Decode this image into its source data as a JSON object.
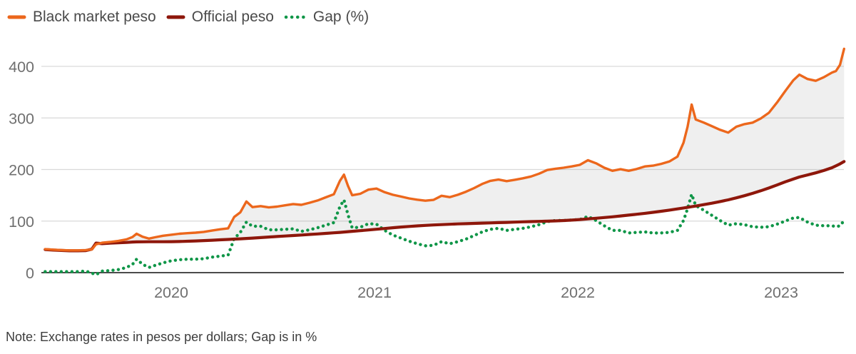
{
  "legend": {
    "items": [
      {
        "label": "Black market peso",
        "series": "black_market",
        "style": "solid"
      },
      {
        "label": "Official peso",
        "series": "official",
        "style": "solid"
      },
      {
        "label": "Gap (%)",
        "series": "gap",
        "style": "dotted"
      }
    ]
  },
  "note": "Note: Exchange rates in pesos per dollars; Gap is in %",
  "colors": {
    "black_market": "#ec671c",
    "official": "#8e170b",
    "gap": "#109648",
    "grid": "#d9d9d9",
    "axis": "#333333",
    "tick_label": "#6f6f6f",
    "legend_text": "#4a4a4a",
    "note_text": "#3d3d3d",
    "area_fill": "rgba(130,130,130,0.13)"
  },
  "chart_data": {
    "type": "line",
    "title": "",
    "xlabel": "",
    "ylabel": "",
    "x_unit": "year (decimal)",
    "x_ticks": [
      2020,
      2021,
      2022,
      2023
    ],
    "y_ticks": [
      0,
      100,
      200,
      300,
      400
    ],
    "x_range": [
      2019.35,
      2023.38
    ],
    "y_range": [
      0,
      445
    ],
    "grid": "horizontal",
    "legend_position": "top-left",
    "area_fill_between": [
      "Black market peso",
      "Official peso"
    ],
    "x": [
      2019.38,
      2019.42,
      2019.46,
      2019.5,
      2019.54,
      2019.58,
      2019.61,
      2019.63,
      2019.66,
      2019.7,
      2019.74,
      2019.78,
      2019.81,
      2019.83,
      2019.86,
      2019.89,
      2019.92,
      2019.96,
      2020.0,
      2020.04,
      2020.08,
      2020.12,
      2020.16,
      2020.2,
      2020.24,
      2020.28,
      2020.31,
      2020.34,
      2020.37,
      2020.4,
      2020.44,
      2020.48,
      2020.52,
      2020.56,
      2020.6,
      2020.64,
      2020.68,
      2020.72,
      2020.76,
      2020.8,
      2020.83,
      2020.85,
      2020.87,
      2020.89,
      2020.93,
      2020.97,
      2021.01,
      2021.05,
      2021.09,
      2021.13,
      2021.17,
      2021.21,
      2021.25,
      2021.29,
      2021.33,
      2021.37,
      2021.41,
      2021.45,
      2021.49,
      2021.53,
      2021.57,
      2021.61,
      2021.65,
      2021.69,
      2021.73,
      2021.77,
      2021.81,
      2021.85,
      2021.89,
      2021.93,
      2021.97,
      2022.01,
      2022.05,
      2022.09,
      2022.13,
      2022.17,
      2022.21,
      2022.25,
      2022.29,
      2022.33,
      2022.37,
      2022.41,
      2022.45,
      2022.49,
      2022.52,
      2022.54,
      2022.56,
      2022.58,
      2022.62,
      2022.66,
      2022.7,
      2022.74,
      2022.78,
      2022.82,
      2022.86,
      2022.9,
      2022.94,
      2022.98,
      2023.02,
      2023.06,
      2023.09,
      2023.13,
      2023.17,
      2023.21,
      2023.25,
      2023.27,
      2023.29,
      2023.31
    ],
    "series": [
      {
        "name": "Black market peso",
        "color_key": "black_market",
        "style": "solid",
        "values": [
          45.6,
          44.6,
          43.8,
          43.2,
          43.2,
          43.8,
          45.0,
          55.0,
          58.0,
          59.5,
          61.5,
          64.5,
          69.0,
          75.5,
          69.5,
          66.0,
          68.5,
          71.5,
          73.5,
          75.5,
          76.5,
          77.5,
          79.0,
          81.5,
          84.0,
          86.0,
          108.0,
          117.0,
          138.0,
          127.0,
          129.0,
          126.5,
          128.0,
          130.5,
          133.0,
          131.5,
          135.5,
          140.0,
          146.0,
          152.0,
          178.0,
          190.0,
          168.0,
          150.0,
          153.0,
          161.0,
          163.0,
          156.0,
          151.0,
          147.5,
          144.0,
          141.5,
          139.5,
          141.0,
          149.0,
          146.5,
          151.0,
          157.0,
          164.0,
          172.0,
          178.0,
          180.5,
          177.5,
          180.0,
          183.0,
          186.5,
          192.0,
          199.0,
          201.5,
          203.5,
          206.0,
          209.0,
          218.0,
          212.0,
          203.5,
          197.5,
          200.5,
          197.5,
          201.0,
          206.0,
          207.5,
          211.0,
          215.5,
          225.0,
          252.0,
          283.0,
          326.0,
          297.0,
          291.0,
          284.0,
          277.0,
          271.5,
          283.0,
          288.0,
          291.0,
          299.0,
          310.0,
          330.0,
          352.0,
          373.0,
          384.0,
          375.5,
          372.0,
          379.0,
          388.0,
          391.0,
          403.0,
          434.0
        ]
      },
      {
        "name": "Official peso",
        "color_key": "official",
        "style": "solid",
        "values": [
          44.8,
          43.8,
          43.0,
          42.4,
          42.3,
          42.7,
          45.5,
          57.3,
          56.2,
          57.2,
          58.0,
          58.6,
          59.4,
          59.7,
          59.8,
          59.9,
          59.9,
          59.9,
          60.0,
          60.3,
          60.9,
          61.5,
          62.2,
          62.9,
          63.7,
          64.4,
          65.0,
          65.6,
          66.3,
          67.0,
          68.0,
          69.0,
          70.0,
          71.0,
          72.0,
          73.0,
          74.0,
          75.0,
          76.1,
          77.2,
          78.1,
          78.7,
          79.4,
          80.1,
          81.4,
          82.7,
          84.1,
          85.6,
          87.1,
          88.4,
          89.6,
          90.6,
          91.6,
          92.4,
          93.2,
          93.9,
          94.5,
          95.0,
          95.5,
          96.0,
          96.5,
          97.0,
          97.5,
          98.0,
          98.5,
          98.9,
          99.4,
          99.8,
          100.3,
          101.0,
          101.9,
          103.0,
          104.2,
          105.4,
          106.8,
          108.3,
          109.9,
          111.5,
          113.2,
          115.0,
          117.0,
          119.1,
          121.3,
          123.6,
          125.4,
          126.6,
          127.9,
          129.2,
          131.9,
          134.7,
          137.8,
          141.2,
          145.0,
          149.2,
          153.8,
          158.8,
          164.2,
          170.0,
          176.0,
          181.5,
          185.5,
          189.5,
          193.5,
          198.0,
          203.5,
          207.0,
          211.0,
          215.5
        ]
      },
      {
        "name": "Gap (%)",
        "color_key": "gap",
        "style": "dotted",
        "values": [
          2,
          2,
          2,
          2,
          2,
          3,
          -1,
          -4,
          3,
          4,
          6,
          10,
          16,
          26,
          16,
          10,
          14,
          19,
          23,
          25,
          26,
          26,
          27,
          30,
          32,
          34,
          66,
          78,
          98,
          90,
          90,
          83,
          83,
          84,
          85,
          80,
          83,
          87,
          92,
          97,
          128,
          141,
          112,
          87,
          88,
          95,
          94,
          82,
          73,
          67,
          61,
          56,
          52,
          53,
          60,
          56,
          60,
          65,
          72,
          79,
          84,
          86,
          82,
          84,
          86,
          89,
          93,
          99,
          101,
          101,
          102,
          103,
          109,
          101,
          91,
          82,
          82,
          77,
          78,
          79,
          77,
          77,
          78,
          82,
          101,
          124,
          152,
          130,
          121,
          111,
          101,
          92,
          95,
          93,
          89,
          88,
          89,
          94,
          100,
          106,
          107,
          98,
          92,
          91,
          91,
          89,
          91,
          101
        ]
      }
    ]
  }
}
